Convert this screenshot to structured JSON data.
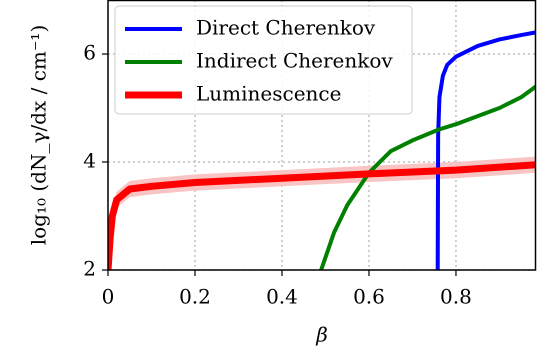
{
  "chart_data": {
    "type": "line",
    "x_label": "β",
    "y_label": "log₁₀ (dN_γ/dx / cm⁻¹)",
    "xlim": [
      0,
      0.984
    ],
    "ylim": [
      2,
      7
    ],
    "xticks": [
      0,
      0.2,
      0.4,
      0.6,
      0.8
    ],
    "yticks": [
      2,
      4,
      6
    ],
    "grid": true,
    "legend": "upper left",
    "series": [
      {
        "name": "Direct Cherenkov",
        "color": "#0000ff",
        "x": [
          0.758,
          0.759,
          0.762,
          0.77,
          0.78,
          0.8,
          0.85,
          0.9,
          0.95,
          0.984
        ],
        "values": [
          2,
          4.5,
          5.2,
          5.6,
          5.8,
          5.95,
          6.15,
          6.27,
          6.35,
          6.4
        ]
      },
      {
        "name": "Indirect Cherenkov",
        "color": "#008000",
        "x": [
          0.49,
          0.52,
          0.55,
          0.6,
          0.65,
          0.7,
          0.76,
          0.8,
          0.85,
          0.9,
          0.95,
          0.984
        ],
        "values": [
          2,
          2.7,
          3.2,
          3.8,
          4.2,
          4.4,
          4.6,
          4.7,
          4.85,
          5.0,
          5.2,
          5.4
        ]
      },
      {
        "name": "Luminescence",
        "color": "#ff0000",
        "band_color": "#f9c4c4",
        "band_halfwidth": 0.15,
        "x": [
          0,
          0.005,
          0.01,
          0.02,
          0.05,
          0.1,
          0.2,
          0.4,
          0.6,
          0.8,
          0.984
        ],
        "values": [
          2,
          2.6,
          3.0,
          3.3,
          3.5,
          3.55,
          3.62,
          3.7,
          3.78,
          3.85,
          3.95
        ]
      }
    ]
  }
}
